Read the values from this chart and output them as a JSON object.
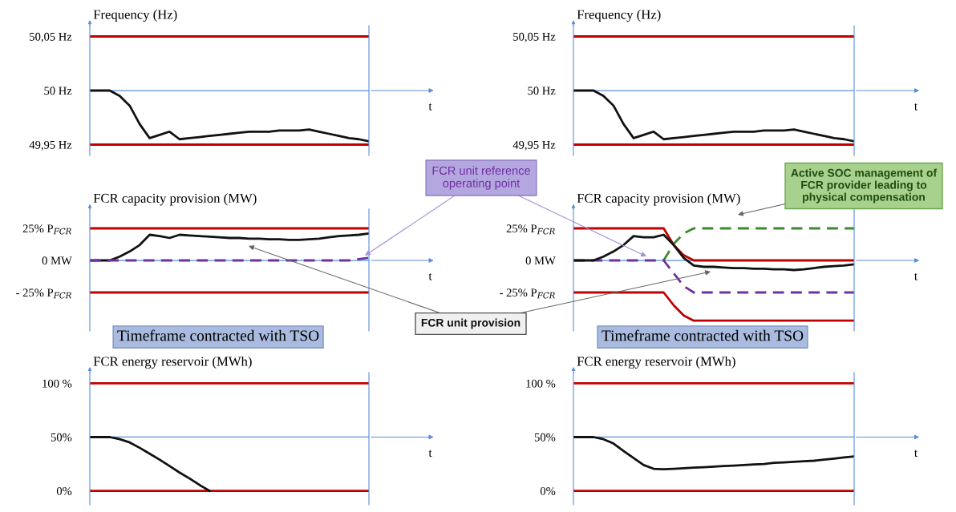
{
  "chart_data": [
    {
      "type": "line",
      "title": "Frequency (Hz)",
      "xlabel": "t",
      "tick_labels": "y",
      "categories": [
        null,
        null,
        null,
        null,
        null,
        null,
        null,
        null,
        null,
        null,
        null,
        null,
        null,
        null,
        null,
        null,
        null,
        null,
        null,
        null,
        null,
        null,
        null,
        null,
        null,
        null,
        null,
        null,
        null
      ],
      "series": [
        {
          "color": "#111111",
          "line_style": "solid",
          "values": [
            50,
            50,
            50,
            49.995,
            49.986,
            49.969,
            49.956,
            49.959,
            49.962,
            49.955,
            49.956,
            49.957,
            49.958,
            49.959,
            49.96,
            49.961,
            49.962,
            49.962,
            49.962,
            49.963,
            49.963,
            49.963,
            49.964,
            49.962,
            49.96,
            49.958,
            49.956,
            49.955,
            49.953
          ]
        }
      ],
      "ylim": [
        49.94,
        50.06
      ],
      "yticks": [
        {
          "value": 50.05,
          "label": "50,05 Hz"
        },
        {
          "value": 50,
          "label": "50 Hz"
        },
        {
          "value": 49.95,
          "label": "49,95 Hz"
        }
      ],
      "ref_lines": [
        {
          "axis": "y",
          "value": 50.05,
          "color": "#c00000"
        },
        {
          "axis": "y",
          "value": 49.95,
          "color": "#c00000"
        },
        {
          "axis": "y",
          "value": 50,
          "color": "#5b8fd9"
        }
      ]
    },
    {
      "type": "line",
      "title": "Frequency (Hz)",
      "xlabel": "t",
      "tick_labels": "y",
      "categories": [
        null,
        null,
        null,
        null,
        null,
        null,
        null,
        null,
        null,
        null,
        null,
        null,
        null,
        null,
        null,
        null,
        null,
        null,
        null,
        null,
        null,
        null,
        null,
        null,
        null,
        null,
        null,
        null,
        null
      ],
      "series": [
        {
          "color": "#111111",
          "line_style": "solid",
          "values": [
            50,
            50,
            50,
            49.995,
            49.986,
            49.969,
            49.956,
            49.959,
            49.962,
            49.955,
            49.956,
            49.957,
            49.958,
            49.959,
            49.96,
            49.961,
            49.962,
            49.962,
            49.962,
            49.963,
            49.963,
            49.963,
            49.964,
            49.962,
            49.96,
            49.958,
            49.956,
            49.955,
            49.953
          ]
        }
      ],
      "ylim": [
        49.94,
        50.06
      ],
      "yticks": [
        {
          "value": 50.05,
          "label": "50,05 Hz"
        },
        {
          "value": 50,
          "label": "50 Hz"
        },
        {
          "value": 49.95,
          "label": "49,95 Hz"
        }
      ],
      "ref_lines": [
        {
          "axis": "y",
          "value": 50.05,
          "color": "#c00000"
        },
        {
          "axis": "y",
          "value": 49.95,
          "color": "#c00000"
        },
        {
          "axis": "y",
          "value": 50,
          "color": "#5b8fd9"
        }
      ]
    },
    {
      "type": "line",
      "title": "FCR capacity provision (MW)",
      "xlabel": "t",
      "tick_labels": "y",
      "categories": [
        null,
        null,
        null,
        null,
        null,
        null,
        null,
        null,
        null,
        null,
        null,
        null,
        null,
        null,
        null,
        null,
        null,
        null,
        null,
        null,
        null,
        null,
        null,
        null,
        null,
        null,
        null,
        null,
        null
      ],
      "series": [
        {
          "color": "#111111",
          "line_style": "solid",
          "values": [
            0,
            0,
            0,
            3,
            7,
            12,
            20,
            19,
            17.5,
            20,
            19.5,
            19,
            18.5,
            18,
            17.5,
            17.5,
            17,
            17,
            16.5,
            16.5,
            16,
            16,
            16.5,
            17,
            18,
            19,
            19.5,
            20,
            21
          ]
        },
        {
          "color": "#7030a0",
          "line_style": "dashed",
          "values": [
            0,
            0,
            0,
            0,
            0,
            0,
            0,
            0,
            0,
            0,
            0,
            0,
            0,
            0,
            0,
            0,
            0,
            0,
            0,
            0,
            0,
            0,
            0,
            0,
            0,
            0,
            0,
            1,
            2
          ]
        }
      ],
      "ylim": [
        -55,
        40
      ],
      "yticks": [
        {
          "value": 25,
          "label": "25% P$_{FCR}$"
        },
        {
          "value": 0,
          "label": "0 MW"
        },
        {
          "value": -25,
          "label": "- 25% P$_{FCR}$"
        }
      ],
      "ref_lines": [
        {
          "axis": "y",
          "value": 25,
          "color": "#c00000"
        },
        {
          "axis": "y",
          "value": -25,
          "color": "#c00000"
        },
        {
          "axis": "y",
          "value": 0,
          "color": "#5b8fd9"
        }
      ],
      "annotations": [
        "Timeframe contracted with TSO",
        "FCR unit reference\noperating point",
        "FCR unit provision"
      ]
    },
    {
      "type": "line",
      "title": "FCR capacity provision (MW)",
      "xlabel": "t",
      "tick_labels": "y",
      "categories": [
        null,
        null,
        null,
        null,
        null,
        null,
        null,
        null,
        null,
        null,
        null,
        null,
        null,
        null,
        null,
        null,
        null,
        null,
        null,
        null,
        null,
        null,
        null,
        null,
        null,
        null,
        null,
        null,
        null
      ],
      "series": [
        {
          "color": "#c00000",
          "line_style": "solid",
          "values": [
            25,
            25,
            25,
            25,
            25,
            25,
            25,
            25,
            25,
            25,
            12,
            4,
            0,
            0,
            0,
            0,
            0,
            0,
            0,
            0,
            0,
            0,
            0,
            0,
            0,
            0,
            0,
            0,
            0
          ]
        },
        {
          "color": "#c00000",
          "line_style": "solid",
          "values": [
            -25,
            -25,
            -25,
            -25,
            -25,
            -25,
            -25,
            -25,
            -25,
            -25,
            -35,
            -43,
            -47,
            -47,
            -47,
            -47,
            -47,
            -47,
            -47,
            -47,
            -47,
            -47,
            -47,
            -47,
            -47,
            -47,
            -47,
            -47,
            -47
          ]
        },
        {
          "color": "#3a8a2e",
          "line_style": "dashed",
          "values": [
            null,
            null,
            null,
            null,
            null,
            null,
            null,
            null,
            null,
            0,
            13,
            21,
            25,
            25,
            25,
            25,
            25,
            25,
            25,
            25,
            25,
            25,
            25,
            25,
            25,
            25,
            25,
            25,
            25
          ]
        },
        {
          "color": "#7030a0",
          "line_style": "dashed",
          "values": [
            0,
            0,
            0,
            0,
            0,
            0,
            0,
            0,
            0,
            0,
            -10,
            -20,
            -25,
            -25,
            -25,
            -25,
            -25,
            -25,
            -25,
            -25,
            -25,
            -25,
            -25,
            -25,
            -25,
            -25,
            -25,
            -25,
            -25
          ]
        },
        {
          "color": "#111111",
          "line_style": "solid",
          "values": [
            0,
            0,
            0,
            3,
            7,
            12,
            19,
            18,
            18,
            20,
            12,
            2,
            -4,
            -5,
            -5,
            -5.5,
            -6,
            -6,
            -6.5,
            -6.5,
            -7,
            -7,
            -7.5,
            -7,
            -6,
            -5,
            -4.5,
            -4,
            -3
          ]
        }
      ],
      "ylim": [
        -55,
        40
      ],
      "yticks": [
        {
          "value": 25,
          "label": "25% P$_{FCR}$"
        },
        {
          "value": 0,
          "label": "0 MW"
        },
        {
          "value": -25,
          "label": "- 25% P$_{FCR}$"
        }
      ],
      "ref_lines": [
        {
          "axis": "y",
          "value": 0,
          "color": "#5b8fd9"
        }
      ],
      "annotations": [
        "Timeframe contracted with TSO",
        "Active SOC management of\nFCR provider leading to\nphysical compensation"
      ]
    },
    {
      "type": "line",
      "title": "FCR energy reservoir (MWh)",
      "xlabel": "t",
      "tick_labels": "y",
      "categories": [
        null,
        null,
        null,
        null,
        null,
        null,
        null,
        null,
        null,
        null,
        null,
        null,
        null,
        null,
        null,
        null,
        null,
        null,
        null,
        null,
        null,
        null,
        null,
        null,
        null,
        null,
        null,
        null,
        null
      ],
      "series": [
        {
          "color": "#111111",
          "line_style": "solid",
          "values": [
            50,
            50,
            50,
            48,
            45,
            40,
            34.5,
            29,
            23,
            17,
            11.5,
            5.5,
            0,
            null,
            null,
            null,
            null,
            null,
            null,
            null,
            null,
            null,
            null,
            null,
            null,
            null,
            null,
            null,
            null
          ]
        }
      ],
      "ylim": [
        -13,
        110
      ],
      "yticks": [
        {
          "value": 100,
          "label": "100 %"
        },
        {
          "value": 50,
          "label": "50%"
        },
        {
          "value": 0,
          "label": "0%"
        }
      ],
      "ref_lines": [
        {
          "axis": "y",
          "value": 100,
          "color": "#c00000"
        },
        {
          "axis": "y",
          "value": 0,
          "color": "#c00000"
        },
        {
          "axis": "y",
          "value": 50,
          "color": "#5b8fd9"
        }
      ]
    },
    {
      "type": "line",
      "title": "FCR energy reservoir (MWh)",
      "xlabel": "t",
      "tick_labels": "y",
      "categories": [
        null,
        null,
        null,
        null,
        null,
        null,
        null,
        null,
        null,
        null,
        null,
        null,
        null,
        null,
        null,
        null,
        null,
        null,
        null,
        null,
        null,
        null,
        null,
        null,
        null,
        null,
        null,
        null,
        null
      ],
      "series": [
        {
          "color": "#111111",
          "line_style": "solid",
          "values": [
            50,
            50,
            50,
            48,
            44,
            37,
            30.5,
            24,
            20.5,
            20,
            20.5,
            21,
            21.5,
            22,
            22.5,
            23,
            23.5,
            24,
            24.5,
            25,
            26,
            26.5,
            27,
            27.5,
            28,
            29,
            30,
            31,
            32
          ]
        }
      ],
      "ylim": [
        -13,
        110
      ],
      "yticks": [
        {
          "value": 100,
          "label": "100 %"
        },
        {
          "value": 50,
          "label": "50%"
        },
        {
          "value": 0,
          "label": "0%"
        }
      ],
      "ref_lines": [
        {
          "axis": "y",
          "value": 100,
          "color": "#c00000"
        },
        {
          "axis": "y",
          "value": 0,
          "color": "#c00000"
        },
        {
          "axis": "y",
          "value": 50,
          "color": "#5b8fd9"
        }
      ]
    }
  ]
}
